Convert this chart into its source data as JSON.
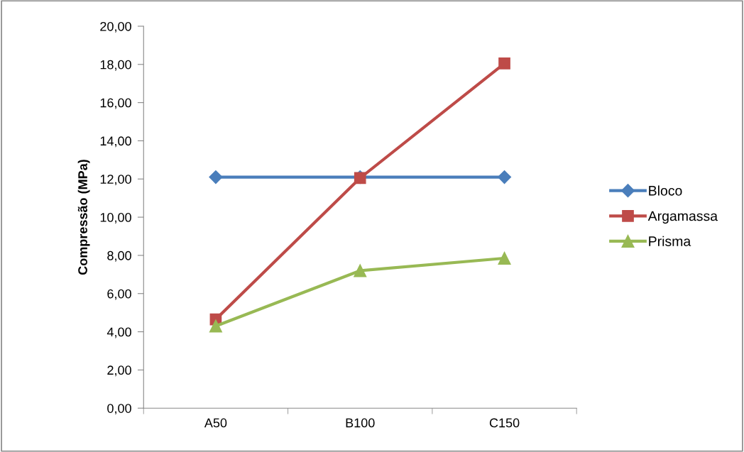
{
  "chart_data": {
    "type": "line",
    "ylabel": "Compressão (MPa)",
    "categories": [
      "A50",
      "B100",
      "C150"
    ],
    "series": [
      {
        "name": "Bloco",
        "color": "#4a7ebb",
        "marker": "diamond",
        "values": [
          12.1,
          12.1,
          12.1
        ]
      },
      {
        "name": "Argamassa",
        "color": "#be4b48",
        "marker": "square",
        "values": [
          4.65,
          12.05,
          18.05
        ]
      },
      {
        "name": "Prisma",
        "color": "#98b954",
        "marker": "triangle",
        "values": [
          4.3,
          7.2,
          7.85
        ]
      }
    ],
    "ylim": [
      0,
      20
    ],
    "yticks": [
      {
        "value": 0,
        "label": "0,00"
      },
      {
        "value": 2,
        "label": "2,00"
      },
      {
        "value": 4,
        "label": "4,00"
      },
      {
        "value": 6,
        "label": "6,00"
      },
      {
        "value": 8,
        "label": "8,00"
      },
      {
        "value": 10,
        "label": "10,00"
      },
      {
        "value": 12,
        "label": "12,00"
      },
      {
        "value": 14,
        "label": "14,00"
      },
      {
        "value": 16,
        "label": "16,00"
      },
      {
        "value": 18,
        "label": "18,00"
      },
      {
        "value": 20,
        "label": "20,00"
      }
    ],
    "grid": false,
    "legend": "right",
    "line_style": "solid"
  }
}
